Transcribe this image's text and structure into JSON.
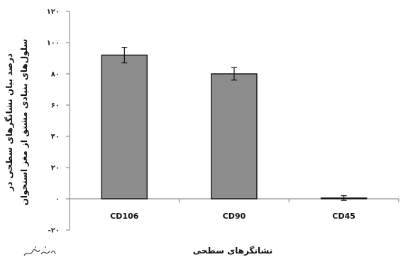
{
  "chart_data": {
    "type": "bar",
    "categories": [
      "CD106",
      "CD90",
      "CD45"
    ],
    "values": [
      92,
      80,
      0.5
    ],
    "errors": [
      5,
      4,
      1.5
    ],
    "xlabel": "نشانگرهای سطحی",
    "ylabel_lines": [
      "درصد بیان نشانگرهای سطحی در",
      "سلول‌های بنیادی مشتق از مغز استخوان"
    ],
    "ylim": [
      -20,
      120
    ],
    "yticks": [
      -20,
      0,
      20,
      40,
      60,
      80,
      100,
      120
    ],
    "ytick_labels": [
      "-۲۰",
      "۰",
      "۲۰",
      "۴۰",
      "۶۰",
      "۸۰",
      "۱۰۰",
      "۱۲۰"
    ],
    "bar_color": "#8c8c8c",
    "grid": false,
    "legend": "none"
  },
  "signature_text": "شمس نژاد"
}
